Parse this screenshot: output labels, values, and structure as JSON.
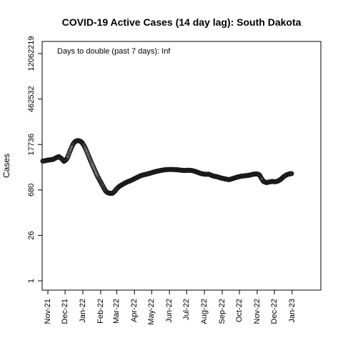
{
  "chart_data": {
    "type": "scatter",
    "title": "COVID-19 Active Cases (14 day lag): South Dakota",
    "annotation": "Days to double (past 7 days): Inf",
    "ylabel": "Cases",
    "xlabel": "",
    "y_scale": "log",
    "grid": false,
    "x_tick_labels": [
      "Nov-21",
      "Dec-21",
      "Jan-22",
      "Feb-22",
      "Mar-22",
      "Apr-22",
      "May-22",
      "Jun-22",
      "Jul-22",
      "Aug-22",
      "Sep-22",
      "Oct-22",
      "Nov-22",
      "Dec-22",
      "Jan-23"
    ],
    "y_ticks": [
      1,
      26,
      680,
      17736,
      462532,
      12062219
    ],
    "y_tick_labels": [
      "1",
      "26",
      "680",
      "17736",
      "462532",
      "12062219"
    ],
    "xlim": [
      "2021-10-22",
      "2023-02-20"
    ],
    "ylim": [
      1,
      12062219
    ],
    "series": [
      {
        "values": [
          [
            "2021-10-23",
            5400
          ],
          [
            "2021-10-27",
            5500
          ],
          [
            "2021-11-01",
            5800
          ],
          [
            "2021-11-05",
            5900
          ],
          [
            "2021-11-10",
            6100
          ],
          [
            "2021-11-15",
            6800
          ],
          [
            "2021-11-20",
            7400
          ],
          [
            "2021-11-25",
            6400
          ],
          [
            "2021-11-29",
            5300
          ],
          [
            "2021-12-03",
            6000
          ],
          [
            "2021-12-06",
            7500
          ],
          [
            "2021-12-09",
            10500
          ],
          [
            "2021-12-12",
            14000
          ],
          [
            "2021-12-15",
            18500
          ],
          [
            "2021-12-18",
            21500
          ],
          [
            "2021-12-21",
            23000
          ],
          [
            "2021-12-24",
            23500
          ],
          [
            "2021-12-27",
            22500
          ],
          [
            "2021-12-30",
            21000
          ],
          [
            "2022-01-02",
            17500
          ],
          [
            "2022-01-05",
            14000
          ],
          [
            "2022-01-08",
            10500
          ],
          [
            "2022-01-11",
            7800
          ],
          [
            "2022-01-14",
            5800
          ],
          [
            "2022-01-17",
            4300
          ],
          [
            "2022-01-20",
            3300
          ],
          [
            "2022-01-23",
            2500
          ],
          [
            "2022-01-26",
            1900
          ],
          [
            "2022-01-29",
            1500
          ],
          [
            "2022-02-01",
            1200
          ],
          [
            "2022-02-04",
            950
          ],
          [
            "2022-02-07",
            760
          ],
          [
            "2022-02-10",
            620
          ],
          [
            "2022-02-13",
            560
          ],
          [
            "2022-02-16",
            540
          ],
          [
            "2022-02-19",
            530
          ],
          [
            "2022-02-22",
            540
          ],
          [
            "2022-02-25",
            600
          ],
          [
            "2022-03-01",
            740
          ],
          [
            "2022-03-06",
            890
          ],
          [
            "2022-03-12",
            1030
          ],
          [
            "2022-03-18",
            1180
          ],
          [
            "2022-03-24",
            1300
          ],
          [
            "2022-03-30",
            1460
          ],
          [
            "2022-04-05",
            1650
          ],
          [
            "2022-04-12",
            1900
          ],
          [
            "2022-04-19",
            2050
          ],
          [
            "2022-04-26",
            2200
          ],
          [
            "2022-05-03",
            2400
          ],
          [
            "2022-05-10",
            2600
          ],
          [
            "2022-05-17",
            2750
          ],
          [
            "2022-05-24",
            2900
          ],
          [
            "2022-05-31",
            2950
          ],
          [
            "2022-06-07",
            2950
          ],
          [
            "2022-06-14",
            2900
          ],
          [
            "2022-06-21",
            2800
          ],
          [
            "2022-06-28",
            2750
          ],
          [
            "2022-07-05",
            2800
          ],
          [
            "2022-07-12",
            2700
          ],
          [
            "2022-07-19",
            2450
          ],
          [
            "2022-07-26",
            2200
          ],
          [
            "2022-08-02",
            2100
          ],
          [
            "2022-08-09",
            2100
          ],
          [
            "2022-08-16",
            1850
          ],
          [
            "2022-08-23",
            1750
          ],
          [
            "2022-08-30",
            1600
          ],
          [
            "2022-09-06",
            1500
          ],
          [
            "2022-09-13",
            1420
          ],
          [
            "2022-09-20",
            1550
          ],
          [
            "2022-09-27",
            1700
          ],
          [
            "2022-10-04",
            1820
          ],
          [
            "2022-10-11",
            1880
          ],
          [
            "2022-10-18",
            1950
          ],
          [
            "2022-10-25",
            2100
          ],
          [
            "2022-11-01",
            2150
          ],
          [
            "2022-11-05",
            2000
          ],
          [
            "2022-11-08",
            1600
          ],
          [
            "2022-11-12",
            1250
          ],
          [
            "2022-11-17",
            1150
          ],
          [
            "2022-11-22",
            1200
          ],
          [
            "2022-11-27",
            1250
          ],
          [
            "2022-12-02",
            1220
          ],
          [
            "2022-12-07",
            1280
          ],
          [
            "2022-12-12",
            1450
          ],
          [
            "2022-12-17",
            1750
          ],
          [
            "2022-12-22",
            2000
          ],
          [
            "2022-12-27",
            2150
          ],
          [
            "2022-12-31",
            2200
          ]
        ]
      }
    ]
  }
}
